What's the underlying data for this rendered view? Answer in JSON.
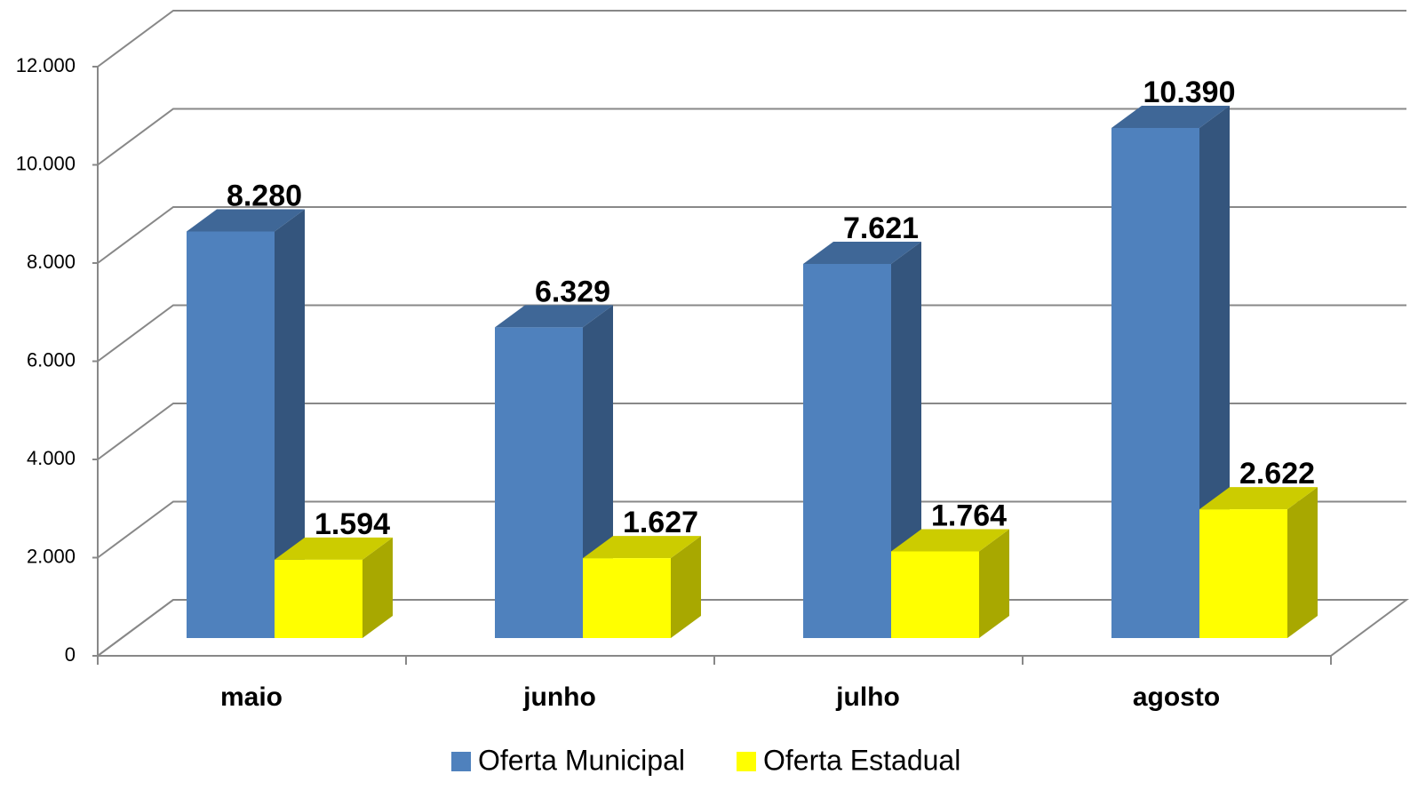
{
  "chart_data": {
    "type": "bar3d",
    "categories": [
      "maio",
      "junho",
      "julho",
      "agosto"
    ],
    "series": [
      {
        "name": "Oferta Municipal",
        "color": "#4f81bd",
        "values": [
          8280,
          6329,
          7621,
          10390
        ],
        "value_labels": [
          "8.280",
          "6.329",
          "7.621",
          "10.390"
        ]
      },
      {
        "name": "Oferta Estadual",
        "color": "#ffff00",
        "values": [
          1594,
          1627,
          1764,
          2622
        ],
        "value_labels": [
          "1.594",
          "1.627",
          "1.764",
          "2.622"
        ]
      }
    ],
    "ylim": [
      0,
      12000
    ],
    "yticks": [
      0,
      {
        "value": 2000,
        "label": "2.000"
      },
      {
        "value": 4000,
        "label": "4.000"
      },
      {
        "value": 6000,
        "label": "6.000"
      },
      {
        "value": 8000,
        "label": "8.000"
      },
      {
        "value": 10000,
        "label": "10.000"
      },
      {
        "value": 12000,
        "label": "12.000"
      }
    ],
    "grid": true,
    "legend": "bottom"
  }
}
